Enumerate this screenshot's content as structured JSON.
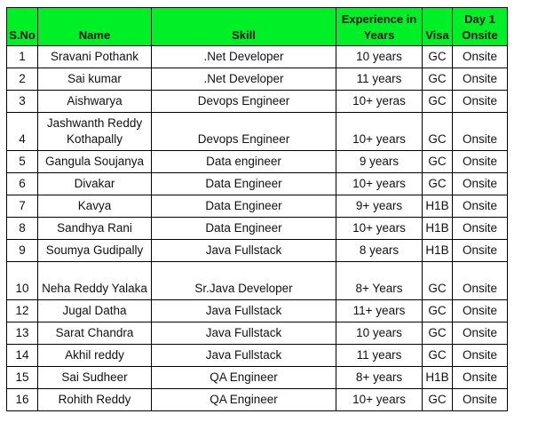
{
  "table": {
    "header_color": "#00f028",
    "columns": [
      "S.No",
      "Name",
      "Skill",
      "Experience in Years",
      "Visa",
      "Day 1 Onsite"
    ],
    "rows": [
      {
        "sno": "1",
        "name": "Sravani Pothank",
        "skill": ".Net Developer",
        "experience": "10 years",
        "visa": "GC",
        "onsite": "Onsite"
      },
      {
        "sno": "2",
        "name": "Sai kumar",
        "skill": ".Net Developer",
        "experience": "11 years",
        "visa": "GC",
        "onsite": "Onsite"
      },
      {
        "sno": "3",
        "name": "Aishwarya",
        "skill": "Devops Engineer",
        "experience": "10+ yeras",
        "visa": "GC",
        "onsite": "Onsite"
      },
      {
        "sno": "4",
        "name": "Jashwanth Reddy Kothapally",
        "skill": "Devops Engineer",
        "experience": "10+ years",
        "visa": "GC",
        "onsite": "Onsite"
      },
      {
        "sno": "5",
        "name": "Gangula Soujanya",
        "skill": "Data engineer",
        "experience": "9 years",
        "visa": "GC",
        "onsite": "Onsite"
      },
      {
        "sno": "6",
        "name": "Divakar",
        "skill": "Data Engineer",
        "experience": "10+ years",
        "visa": "GC",
        "onsite": "Onsite"
      },
      {
        "sno": "7",
        "name": "Kavya",
        "skill": "Data Engineer",
        "experience": "9+ years",
        "visa": "H1B",
        "onsite": "Onsite"
      },
      {
        "sno": "8",
        "name": "Sandhya Rani",
        "skill": "Data Engineer",
        "experience": "10+ years",
        "visa": "H1B",
        "onsite": "Onsite"
      },
      {
        "sno": "9",
        "name": "Soumya Gudipally",
        "skill": "Java Fullstack",
        "experience": "8 years",
        "visa": "H1B",
        "onsite": "Onsite"
      },
      {
        "sno": "10",
        "name": "Neha Reddy Yalaka",
        "skill": "Sr.Java Developer",
        "experience": "8+ Years",
        "visa": "GC",
        "onsite": "Onsite"
      },
      {
        "sno": "12",
        "name": "Jugal Datha",
        "skill": "Java Fullstack",
        "experience": "11+ years",
        "visa": "GC",
        "onsite": "Onsite"
      },
      {
        "sno": "13",
        "name": "Sarat Chandra",
        "skill": "Java Fullstack",
        "experience": "10 years",
        "visa": "GC",
        "onsite": "Onsite"
      },
      {
        "sno": "14",
        "name": "Akhil reddy",
        "skill": "Java Fullstack",
        "experience": "11 years",
        "visa": "GC",
        "onsite": "Onsite"
      },
      {
        "sno": "15",
        "name": "Sai Sudheer",
        "skill": "QA Engineer",
        "experience": "8+ years",
        "visa": "H1B",
        "onsite": "Onsite"
      },
      {
        "sno": "16",
        "name": "Rohith Reddy",
        "skill": "QA Engineer",
        "experience": "10+ years",
        "visa": "GC",
        "onsite": "Onsite"
      }
    ]
  }
}
